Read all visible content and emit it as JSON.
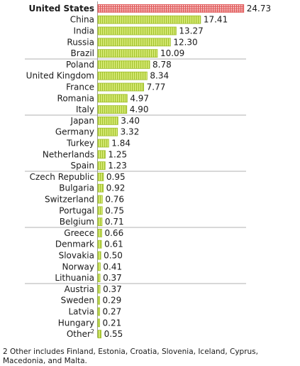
{
  "chart_data": {
    "type": "bar",
    "orientation": "horizontal",
    "categories": [
      "United States",
      "China",
      "India",
      "Russia",
      "Brazil",
      "Poland",
      "United Kingdom",
      "France",
      "Romania",
      "Italy",
      "Japan",
      "Germany",
      "Turkey",
      "Netherlands",
      "Spain",
      "Czech Republic",
      "Bulgaria",
      "Switzerland",
      "Portugal",
      "Belgium",
      "Greece",
      "Denmark",
      "Slovakia",
      "Norway",
      "Lithuania",
      "Austria",
      "Sweden",
      "Latvia",
      "Hungary",
      "Other"
    ],
    "values": [
      24.73,
      17.41,
      13.27,
      12.3,
      10.09,
      8.78,
      8.34,
      7.77,
      4.97,
      4.9,
      3.4,
      3.32,
      1.84,
      1.25,
      1.23,
      0.95,
      0.92,
      0.76,
      0.75,
      0.71,
      0.66,
      0.61,
      0.5,
      0.41,
      0.37,
      0.37,
      0.29,
      0.27,
      0.21,
      0.55
    ],
    "value_labels": [
      "24.73",
      "17.41",
      "13.27",
      "12.30",
      "10.09",
      "8.78",
      "8.34",
      "7.77",
      "4.97",
      "4.90",
      "3.40",
      "3.32",
      "1.84",
      "1.25",
      "1.23",
      "0.95",
      "0.92",
      "0.76",
      "0.75",
      "0.71",
      "0.66",
      "0.61",
      "0.50",
      "0.41",
      "0.37",
      "0.37",
      "0.29",
      "0.27",
      "0.21",
      "0.55"
    ],
    "highlight_category": "United States",
    "footnote_marks": {
      "Other": "2"
    },
    "xlim": [
      0,
      25
    ],
    "grid": false,
    "colors": {
      "highlight": "#e25c5c",
      "bar": "#c5de4f",
      "bar_stripe": "#9fbf2a",
      "separator": "#b0b0b0"
    }
  },
  "footnote": "2 Other includes Finland, Estonia, Croatia, Slovenia, Iceland, Cyprus, Macedonia, and Malta."
}
